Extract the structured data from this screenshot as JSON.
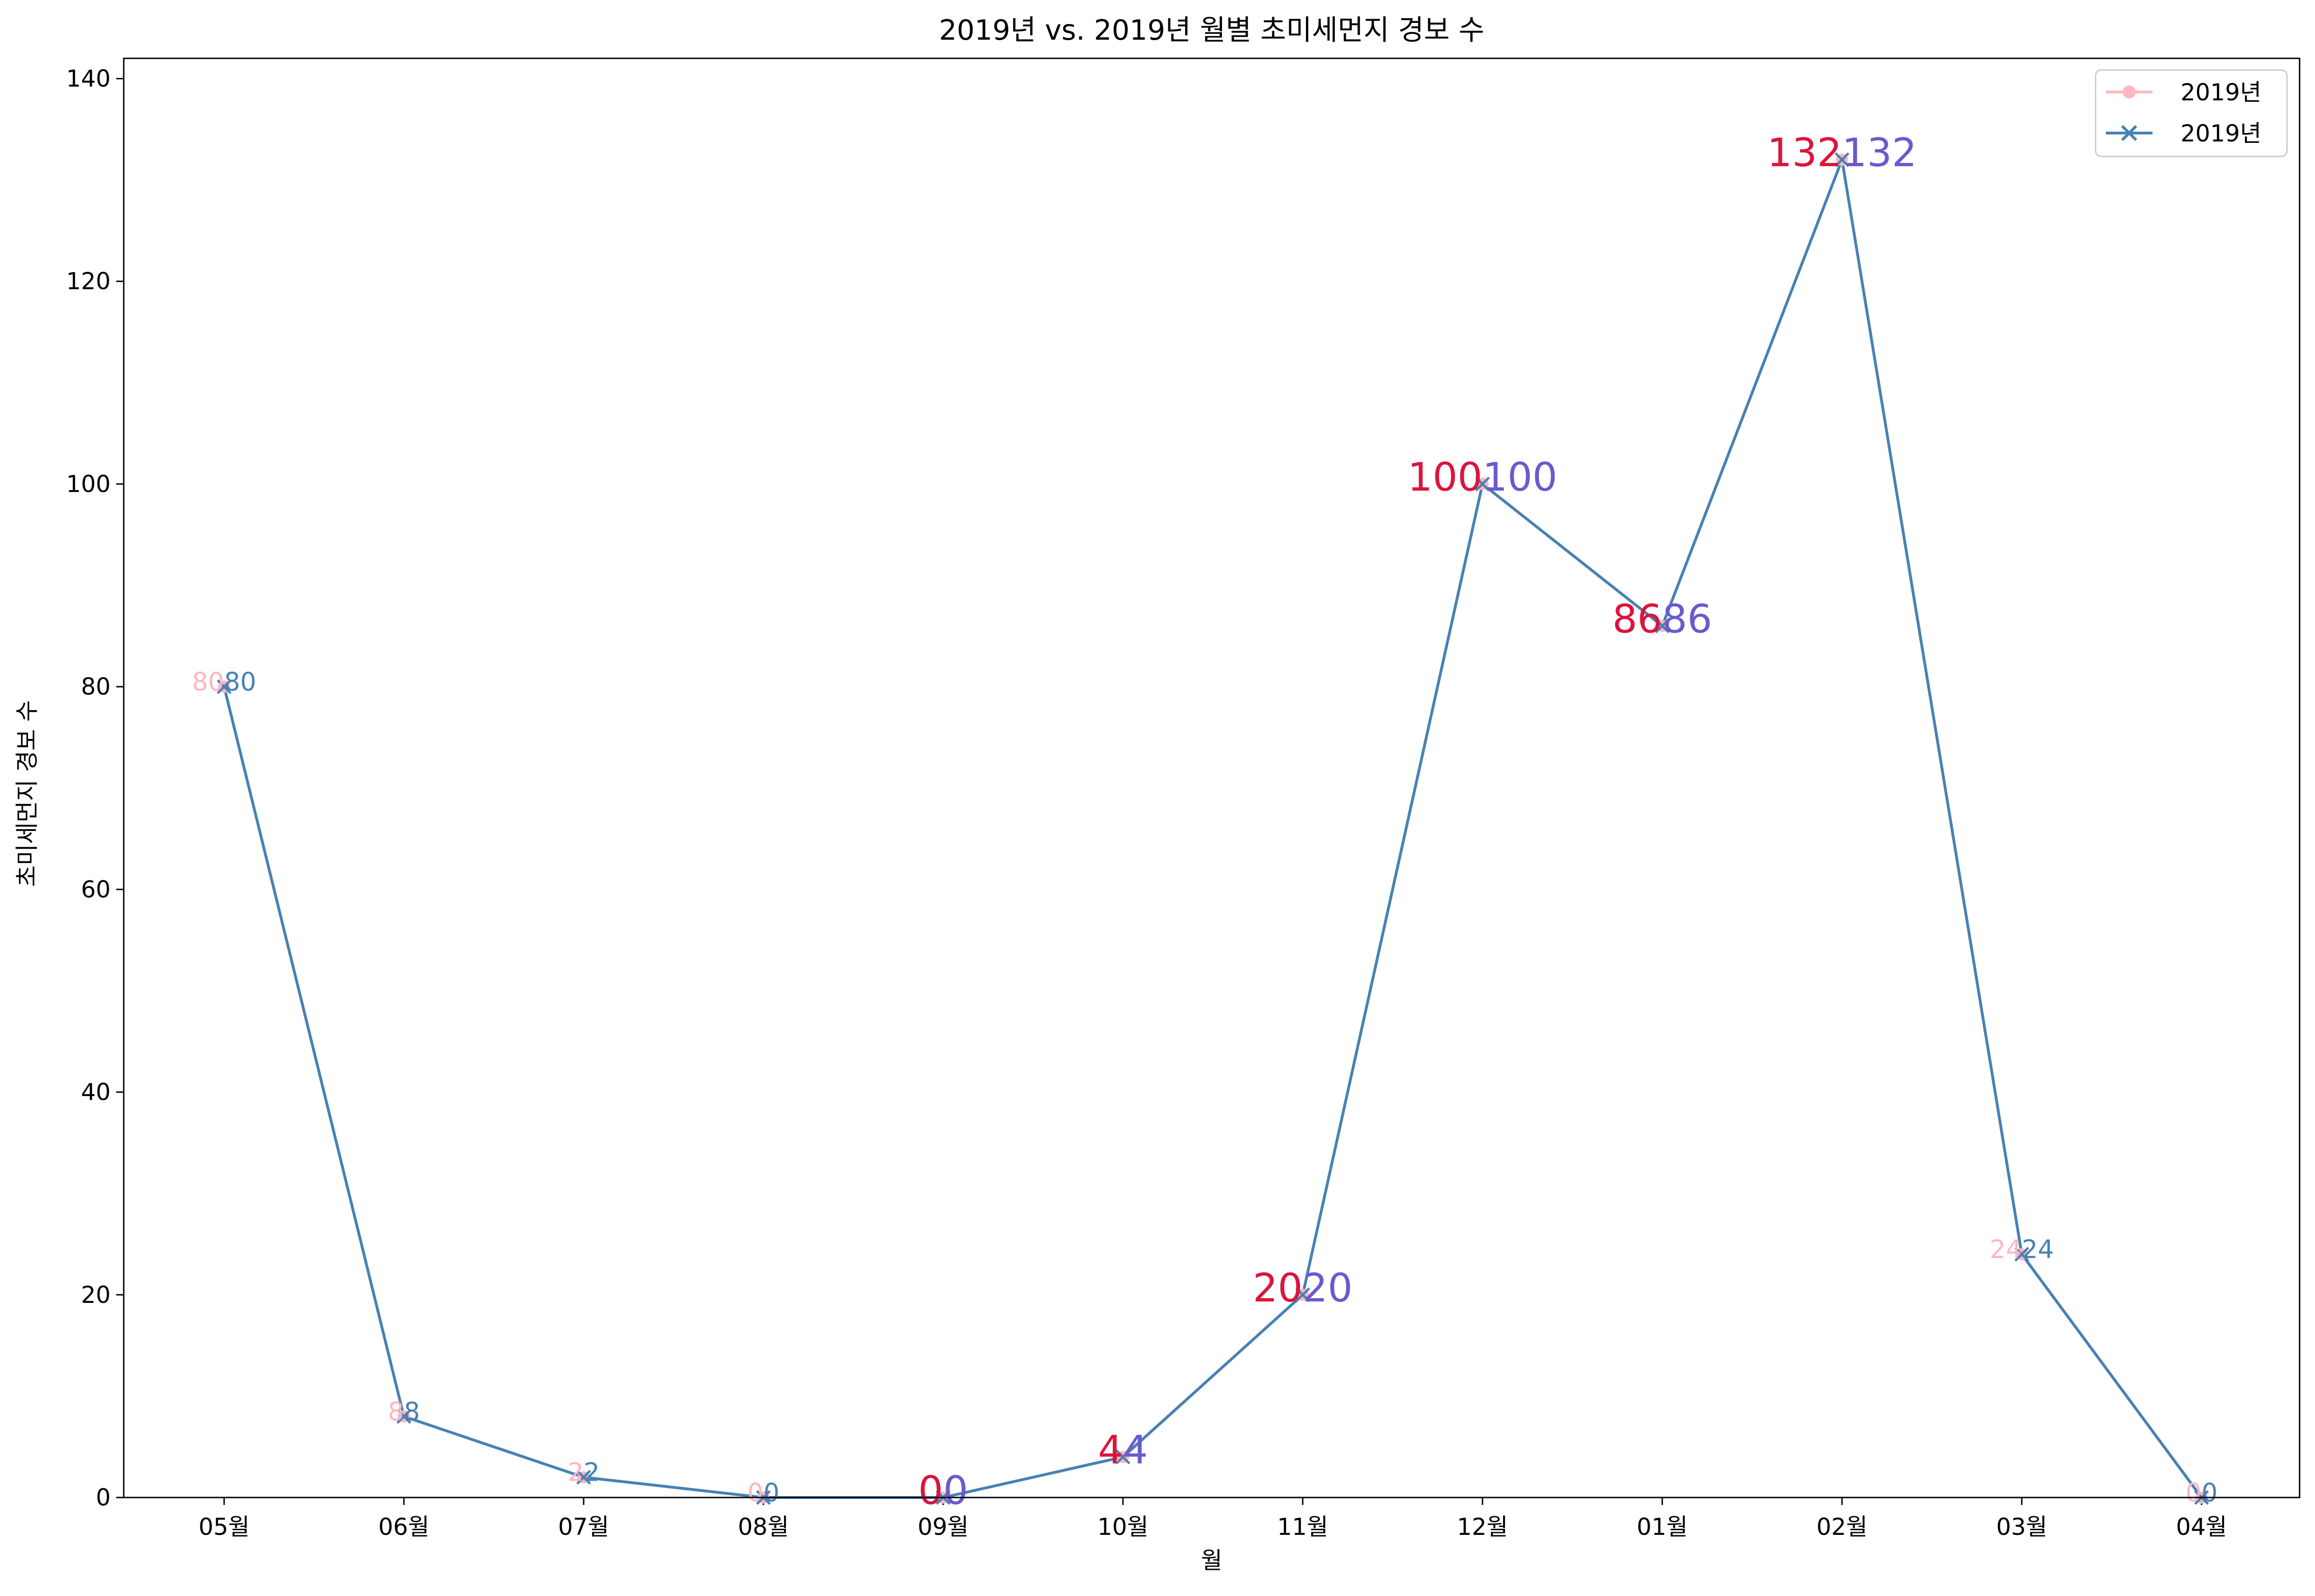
{
  "chart_data": {
    "type": "line",
    "title": "2019년 vs. 2019년 월별 초미세먼지 경보 수",
    "xlabel": "월",
    "ylabel": "초미세먼지 경보 수",
    "categories": [
      "05월",
      "06월",
      "07월",
      "08월",
      "09월",
      "10월",
      "11월",
      "12월",
      "01월",
      "02월",
      "03월",
      "04월"
    ],
    "ylim": [
      0,
      142
    ],
    "yticks": [
      0,
      20,
      40,
      60,
      80,
      100,
      120,
      140
    ],
    "grid": false,
    "legend_position": "top-right",
    "series": [
      {
        "name": "2019년",
        "values": [
          80,
          8,
          2,
          0,
          0,
          4,
          20,
          100,
          86,
          132,
          24,
          0
        ],
        "color": "#ffb6c1",
        "marker": "circle"
      },
      {
        "name": "2019년",
        "values": [
          80,
          8,
          2,
          0,
          0,
          4,
          20,
          100,
          86,
          132,
          24,
          0
        ],
        "color": "#4682b4",
        "marker": "x"
      }
    ],
    "label_colors": {
      "series1_normal": "#ffb6c1",
      "series1_highlight": "#dc143c",
      "series2_normal": "#4682b4",
      "series2_highlight": "#6a5acd"
    },
    "highlighted_categories": [
      "09월",
      "10월",
      "11월",
      "12월",
      "01월",
      "02월"
    ]
  }
}
